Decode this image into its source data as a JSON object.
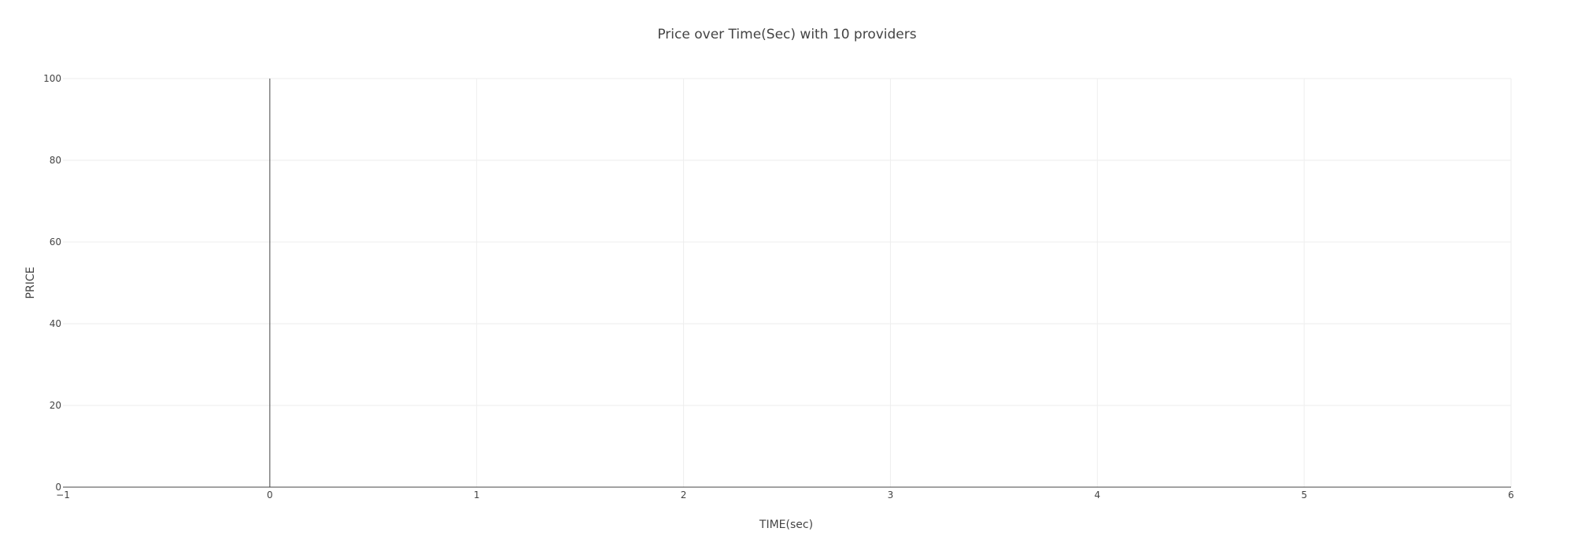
{
  "chart_data": {
    "type": "line",
    "title": "Price over Time(Sec) with 10 providers",
    "xlabel": "TIME(sec)",
    "ylabel": "PRICE",
    "xlim": [
      -1,
      6
    ],
    "ylim": [
      0,
      100
    ],
    "x_ticks": [
      -1,
      0,
      1,
      2,
      3,
      4,
      5,
      6
    ],
    "x_tick_labels": [
      "−1",
      "0",
      "1",
      "2",
      "3",
      "4",
      "5",
      "6"
    ],
    "y_ticks": [
      0,
      20,
      40,
      60,
      80,
      100
    ],
    "y_tick_labels": [
      "0",
      "20",
      "40",
      "60",
      "80",
      "100"
    ],
    "grid": true,
    "series": []
  },
  "colors": {
    "text": "#444444",
    "grid": "#eeeeee",
    "axis": "#444444",
    "background": "#ffffff"
  }
}
